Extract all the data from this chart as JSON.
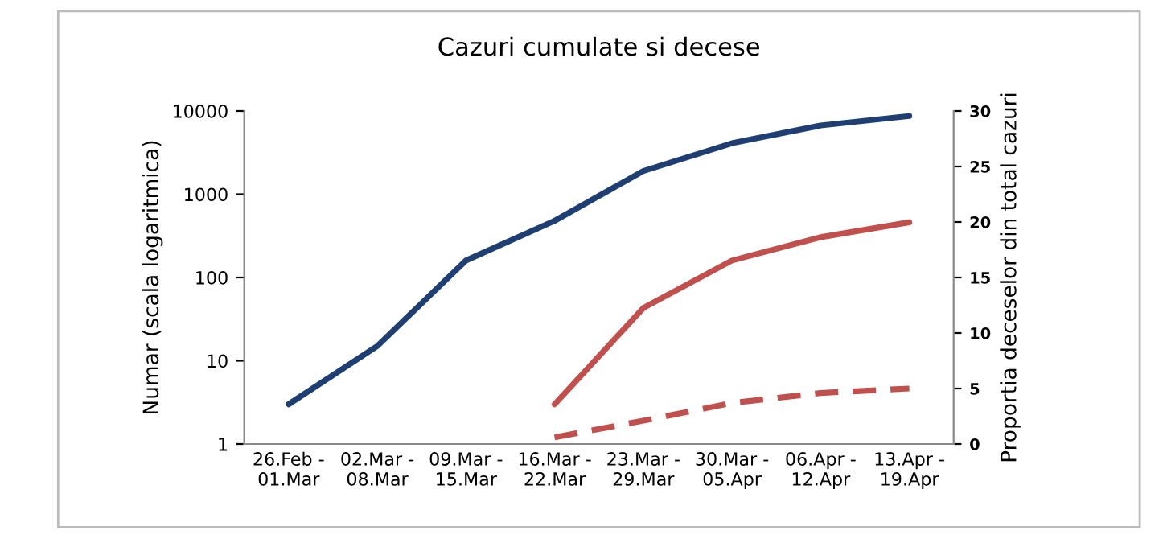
{
  "chart_data": {
    "type": "line",
    "title": "Cazuri cumulate si decese",
    "ylabel": "Numar (scala logaritmica)",
    "y2label": "Proportia deceselor din total cazuri",
    "categories": [
      "26.Feb -\n01.Mar",
      "02.Mar -\n08.Mar",
      "09.Mar -\n15.Mar",
      "16.Mar -\n22.Mar",
      "23.Mar -\n29.Mar",
      "30.Mar -\n05.Apr",
      "06.Apr -\n12.Apr",
      "13.Apr -\n19.Apr"
    ],
    "series": [
      {
        "color": "#1f3f73",
        "values": [
          3,
          15,
          160,
          480,
          1900,
          4100,
          6700,
          8700
        ]
      },
      {
        "color": "#c0504d",
        "values": [
          null,
          null,
          null,
          3,
          43,
          160,
          305,
          460
        ]
      },
      {
        "color": "#c0504d",
        "values": [
          null,
          null,
          null,
          0.6,
          2.1,
          3.7,
          4.6,
          5.0
        ],
        "axis": "y2",
        "line_style": "dashed"
      }
    ],
    "log": "y",
    "ylim": [
      1,
      10000
    ],
    "yticks": [
      1,
      10,
      100,
      1000,
      10000
    ],
    "y2lim": [
      0,
      30
    ],
    "y2ticks": [
      0,
      5,
      10,
      15,
      20,
      25,
      30
    ],
    "grid": false
  }
}
